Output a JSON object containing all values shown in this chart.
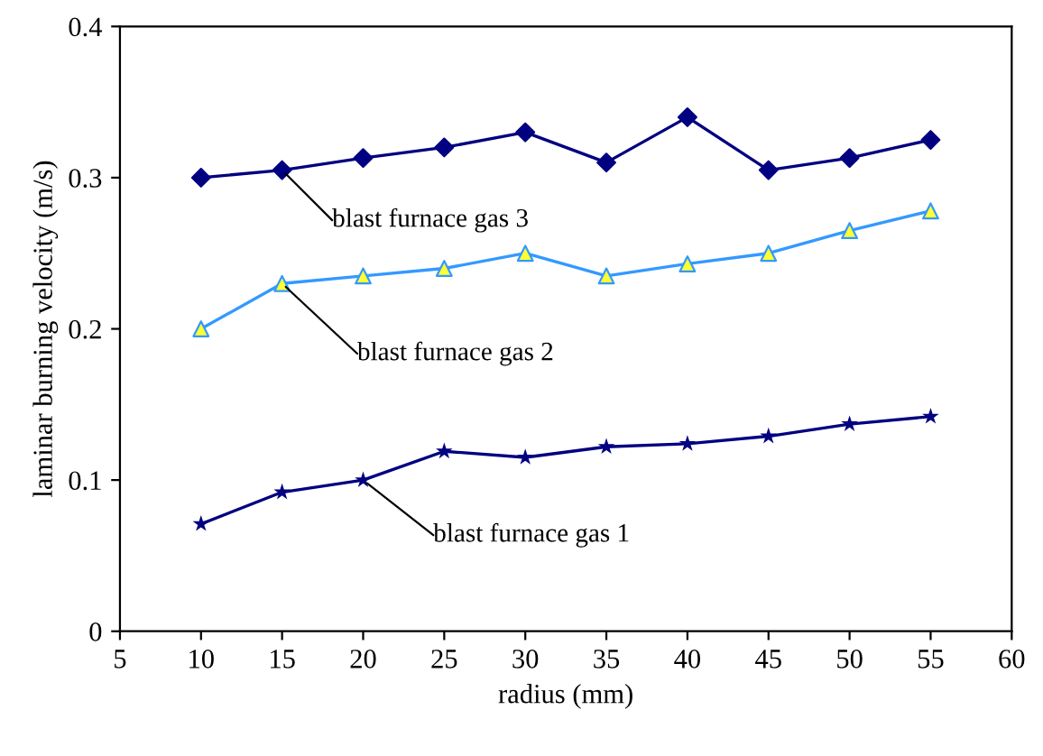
{
  "chart_data": {
    "type": "line",
    "xlabel": "radius (mm)",
    "ylabel": "laminar burning velocity (m/s)",
    "x": [
      10,
      15,
      20,
      25,
      30,
      35,
      40,
      45,
      50,
      55
    ],
    "xlim": [
      5,
      60
    ],
    "xticks": [
      5,
      10,
      15,
      20,
      25,
      30,
      35,
      40,
      45,
      50,
      55,
      60
    ],
    "ylim": [
      0,
      0.4
    ],
    "yticks": [
      0,
      0.1,
      0.2,
      0.3,
      0.4
    ],
    "grid": false,
    "legend": false,
    "series": [
      {
        "name": "blast furnace gas 3",
        "color": "#000080",
        "marker": "diamond",
        "values": [
          0.3,
          0.305,
          0.313,
          0.32,
          0.33,
          0.31,
          0.34,
          0.305,
          0.313,
          0.325
        ]
      },
      {
        "name": "blast furnace gas 2",
        "color": "#3399ff",
        "marker": "triangle",
        "colors": [
          "#ffff33",
          "#ffff33",
          "#ffff33",
          "#ffff33",
          "#ffff33",
          "#ffff33",
          "#ffff33",
          "#ffff33",
          "#ffff33",
          "#ffff33"
        ],
        "values": [
          0.2,
          0.23,
          0.235,
          0.24,
          0.25,
          0.235,
          0.243,
          0.25,
          0.265,
          0.278
        ]
      },
      {
        "name": "blast furnace gas 1",
        "color": "#000080",
        "marker": "star",
        "values": [
          0.071,
          0.092,
          0.1,
          0.119,
          0.115,
          0.122,
          0.124,
          0.129,
          0.137,
          0.142
        ]
      }
    ]
  }
}
